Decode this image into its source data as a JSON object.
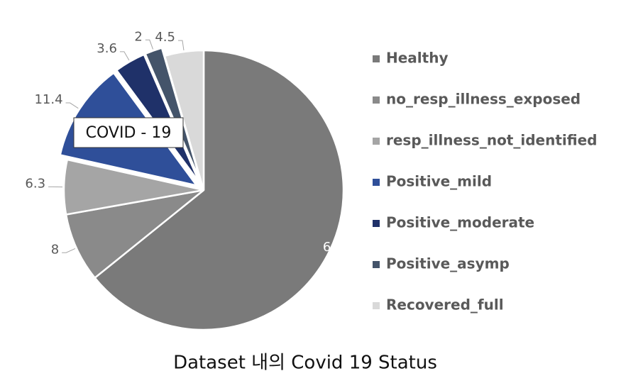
{
  "chart_data": {
    "type": "pie",
    "title": "Dataset 내의 Covid 19 Status",
    "annotation": "COVID - 19",
    "categories": [
      "Healthy",
      "no_resp_illness_exposed",
      "resp_illness_not_identified",
      "Positive_mild",
      "Positive_moderate",
      "Positive_asymp",
      "Recovered_full"
    ],
    "values": [
      64.2,
      8,
      6.3,
      11.4,
      3.6,
      2,
      4.5
    ],
    "colors": [
      "#7a7a7a",
      "#8a8a8a",
      "#a5a5a5",
      "#2f4f99",
      "#1f3169",
      "#44546a",
      "#d9d9d9"
    ],
    "explode": [
      false,
      false,
      false,
      true,
      true,
      true,
      false
    ],
    "legend": "right"
  }
}
